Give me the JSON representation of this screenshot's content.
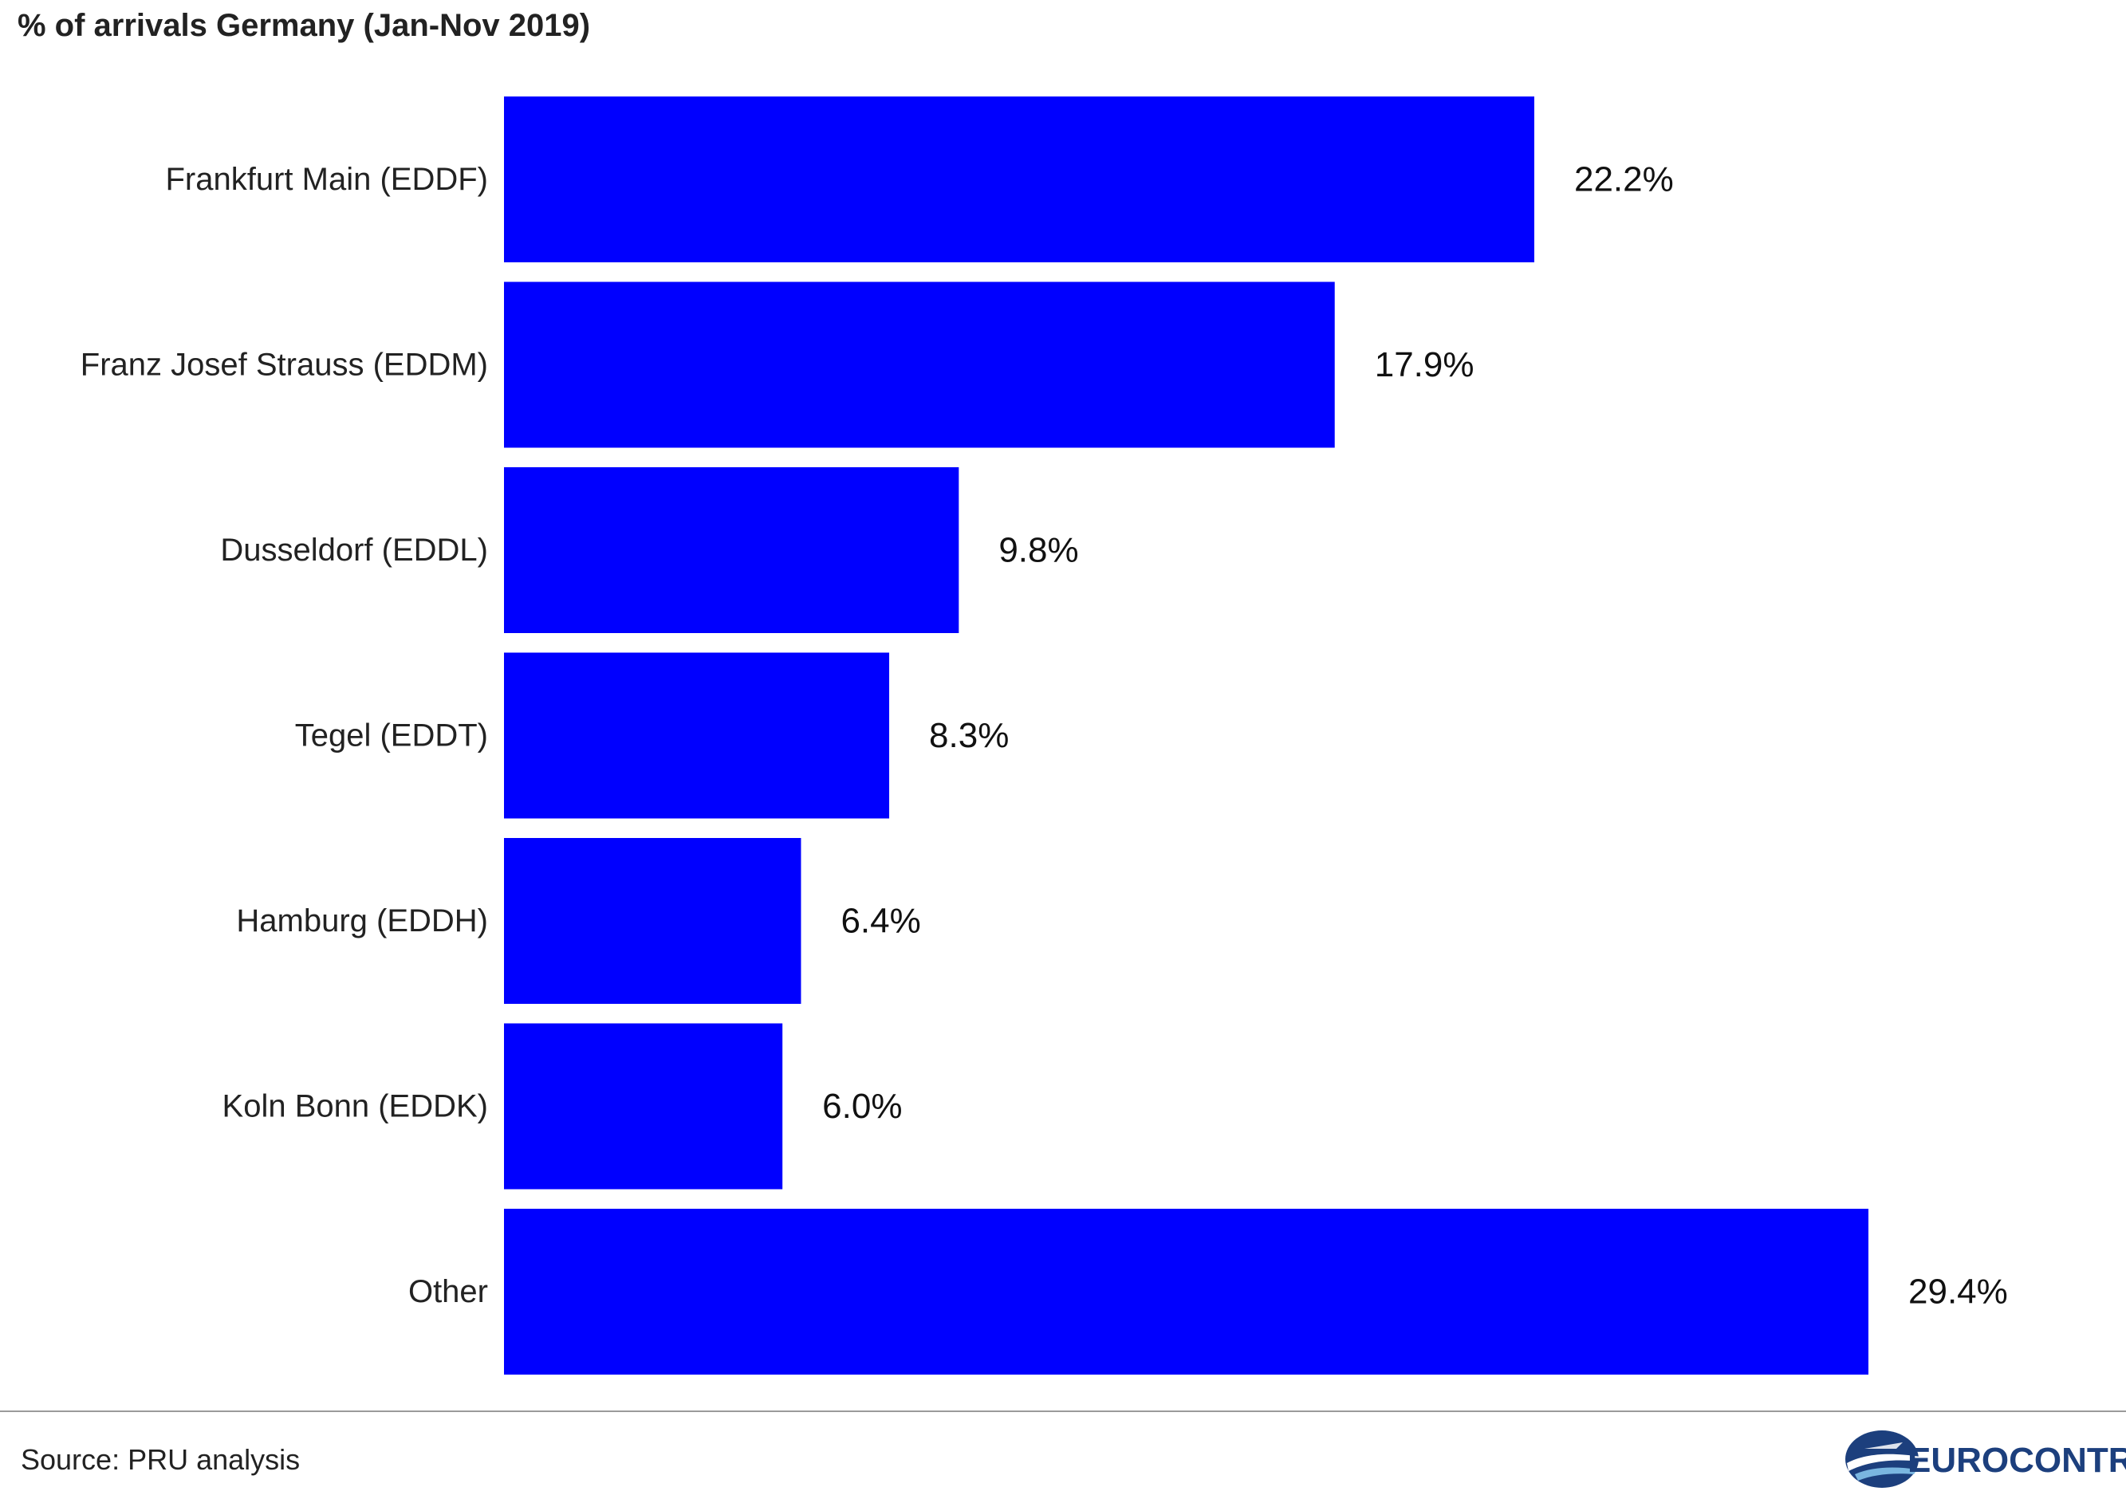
{
  "title": "% of arrivals Germany (Jan-Nov 2019)",
  "footer": {
    "source": "Source: PRU analysis",
    "logo_text": "EUROCONTROL",
    "logo_color": "#1c3f7d"
  },
  "chart_data": {
    "type": "bar",
    "orientation": "horizontal",
    "title": "% of arrivals Germany (Jan-Nov 2019)",
    "categories": [
      "Frankfurt Main (EDDF)",
      "Franz Josef Strauss (EDDM)",
      "Dusseldorf (EDDL)",
      "Tegel (EDDT)",
      "Hamburg (EDDH)",
      "Koln Bonn (EDDK)",
      "Other"
    ],
    "values": [
      22.2,
      17.9,
      9.8,
      8.3,
      6.4,
      6.0,
      29.4
    ],
    "data_labels": [
      "22.2%",
      "17.9%",
      "9.8%",
      "8.3%",
      "6.4%",
      "6.0%",
      "29.4%"
    ],
    "bar_color": "#0000ff",
    "xlim": [
      0,
      29.4
    ],
    "grid": false,
    "legend": "none"
  }
}
